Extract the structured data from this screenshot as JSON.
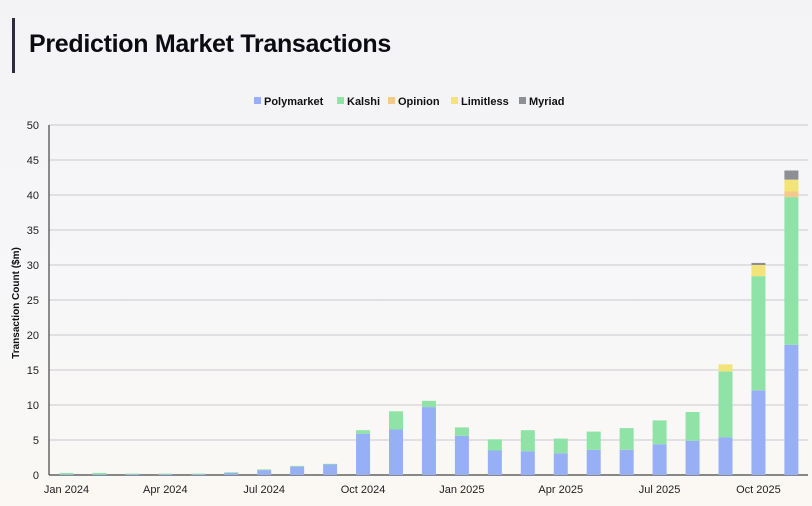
{
  "header": {
    "title": "Prediction Market Transactions"
  },
  "chart_data": {
    "type": "bar",
    "stacked": true,
    "title": "Prediction Market Transactions",
    "ylabel": "Transaction Count ($m)",
    "xlabel": "",
    "ylim": [
      0,
      50
    ],
    "yticks": [
      0,
      5,
      10,
      15,
      20,
      25,
      30,
      35,
      40,
      45,
      50
    ],
    "grid": true,
    "legend_position": "top-center",
    "xtick_labels": [
      "Jan 2024",
      "Apr 2024",
      "Jul 2024",
      "Oct 2024",
      "Jan 2025",
      "Apr 2025",
      "Jul 2025",
      "Oct 2025"
    ],
    "categories": [
      "Jan 2024",
      "Feb 2024",
      "Mar 2024",
      "Apr 2024",
      "May 2024",
      "Jun 2024",
      "Jul 2024",
      "Aug 2024",
      "Sep 2024",
      "Oct 2024",
      "Nov 2024",
      "Dec 2024",
      "Jan 2025",
      "Feb 2025",
      "Mar 2025",
      "Apr 2025",
      "May 2025",
      "Jun 2025",
      "Jul 2025",
      "Aug 2025",
      "Sep 2025",
      "Oct 2025",
      "Nov 2025"
    ],
    "series": [
      {
        "name": "Polymarket",
        "color": "#96aff5",
        "values": [
          0.1,
          0.1,
          0.1,
          0.1,
          0.1,
          0.3,
          0.7,
          1.2,
          1.5,
          5.9,
          6.5,
          9.7,
          5.6,
          3.5,
          3.4,
          3.1,
          3.6,
          3.6,
          4.4,
          4.9,
          5.4,
          12.1,
          18.6
        ]
      },
      {
        "name": "Kalshi",
        "color": "#8fe3a7",
        "values": [
          0.2,
          0.2,
          0.1,
          0.1,
          0.1,
          0.1,
          0.1,
          0.1,
          0.1,
          0.5,
          2.6,
          0.9,
          1.2,
          1.6,
          3.0,
          2.1,
          2.6,
          3.1,
          3.4,
          4.1,
          9.4,
          16.3,
          21.1
        ]
      },
      {
        "name": "Opinion",
        "color": "#f5c98c",
        "values": [
          0,
          0,
          0,
          0,
          0,
          0,
          0,
          0,
          0,
          0,
          0,
          0,
          0,
          0,
          0,
          0,
          0,
          0,
          0,
          0,
          0,
          0,
          0.8
        ]
      },
      {
        "name": "Limitless",
        "color": "#f2e479",
        "values": [
          0,
          0,
          0,
          0,
          0,
          0,
          0,
          0,
          0,
          0,
          0,
          0,
          0,
          0,
          0,
          0,
          0,
          0,
          0,
          0,
          1.0,
          1.6,
          1.7
        ]
      },
      {
        "name": "Myriad",
        "color": "#8e8e96",
        "values": [
          0,
          0,
          0,
          0,
          0,
          0,
          0,
          0,
          0,
          0,
          0,
          0,
          0,
          0,
          0,
          0,
          0,
          0,
          0,
          0,
          0,
          0.3,
          1.3
        ]
      }
    ]
  }
}
